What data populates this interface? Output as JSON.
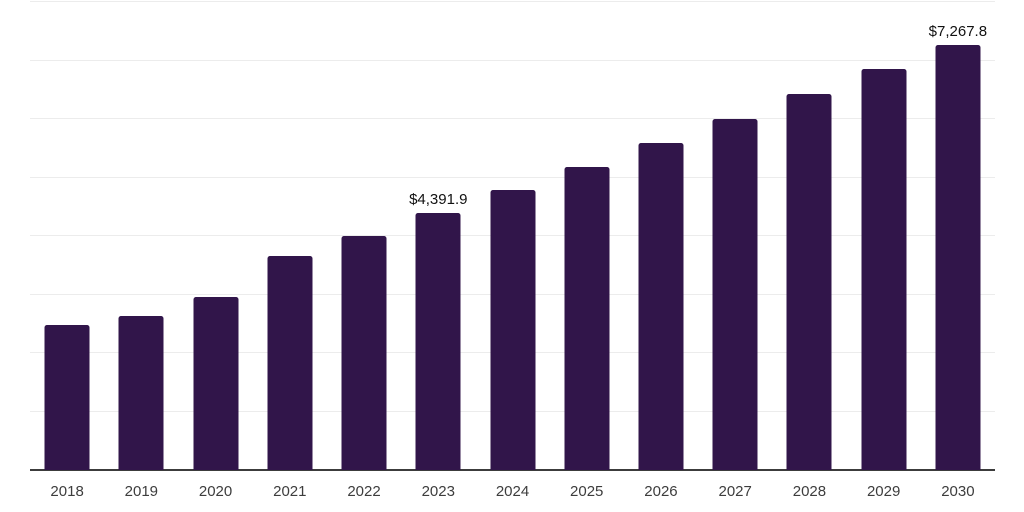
{
  "chart_data": {
    "type": "bar",
    "title": "",
    "xlabel": "",
    "ylabel": "",
    "categories": [
      "2018",
      "2019",
      "2020",
      "2021",
      "2022",
      "2023",
      "2024",
      "2025",
      "2026",
      "2027",
      "2028",
      "2029",
      "2030"
    ],
    "values": [
      2478,
      2632,
      2966,
      3657,
      4000,
      4391.9,
      4780,
      5178,
      5598,
      6000,
      6436,
      6862,
      7267.8
    ],
    "labeled_points": [
      {
        "category": "2023",
        "label": "$4,391.9"
      },
      {
        "category": "2030",
        "label": "$7,267.8"
      }
    ],
    "ylim": [
      0,
      8000
    ],
    "gridline_step": 1000,
    "grid": "horizontal-only",
    "y_tick_labels_visible": false,
    "legend": "none",
    "colors": {
      "bar": "#31154a",
      "gridline": "#ececec",
      "axis_line": "#3c3c3c",
      "tick_label": "#3d3d3d",
      "value_label": "#111111",
      "background": "#ffffff"
    }
  }
}
